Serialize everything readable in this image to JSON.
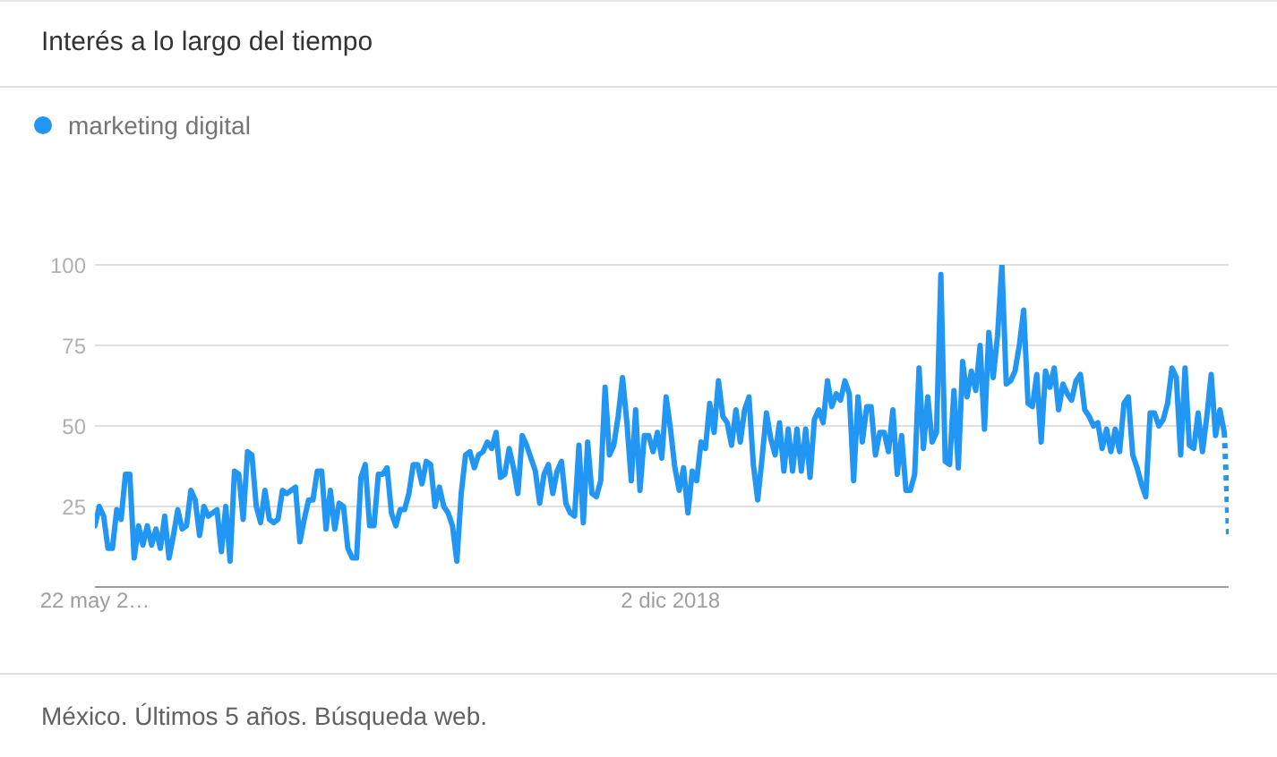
{
  "chart_data": {
    "type": "line",
    "title": "Interés a lo largo del tiempo",
    "annotations": [
      "México. Últimos 5 años. Búsqueda web."
    ],
    "series": [
      {
        "name": "marketing digital",
        "color": "#2196f3",
        "x": [
          "2016-05-22",
          "2016-05-29",
          "2016-06-05",
          "2016-06-12",
          "2016-06-19",
          "2016-06-26",
          "2016-07-03",
          "2016-07-10",
          "2016-07-17",
          "2016-07-24",
          "2016-07-31",
          "2016-08-07",
          "2016-08-14",
          "2016-08-21",
          "2016-08-28",
          "2016-09-04",
          "2016-09-11",
          "2016-09-18",
          "2016-09-25",
          "2016-10-02",
          "2016-10-09",
          "2016-10-16",
          "2016-10-23",
          "2016-10-30",
          "2016-11-06",
          "2016-11-13",
          "2016-11-20",
          "2016-11-27",
          "2016-12-04",
          "2016-12-11",
          "2016-12-18",
          "2016-12-25",
          "2017-01-01",
          "2017-01-08",
          "2017-01-15",
          "2017-01-22",
          "2017-01-29",
          "2017-02-05",
          "2017-02-12",
          "2017-02-19",
          "2017-02-26",
          "2017-03-05",
          "2017-03-12",
          "2017-03-19",
          "2017-03-26",
          "2017-04-02",
          "2017-04-09",
          "2017-04-16",
          "2017-04-23",
          "2017-04-30",
          "2017-05-07",
          "2017-05-14",
          "2017-05-21",
          "2017-05-28",
          "2017-06-04",
          "2017-06-11",
          "2017-06-18",
          "2017-06-25",
          "2017-07-02",
          "2017-07-09",
          "2017-07-16",
          "2017-07-23",
          "2017-07-30",
          "2017-08-06",
          "2017-08-13",
          "2017-08-20",
          "2017-08-27",
          "2017-09-03",
          "2017-09-10",
          "2017-09-17",
          "2017-09-24",
          "2017-10-01",
          "2017-10-08",
          "2017-10-15",
          "2017-10-22",
          "2017-10-29",
          "2017-11-05",
          "2017-11-12",
          "2017-11-19",
          "2017-11-26",
          "2017-12-03",
          "2017-12-10",
          "2017-12-17",
          "2017-12-24",
          "2017-12-31",
          "2018-01-07",
          "2018-01-14",
          "2018-01-21",
          "2018-01-28",
          "2018-02-04",
          "2018-02-11",
          "2018-02-18",
          "2018-02-25",
          "2018-03-04",
          "2018-03-11",
          "2018-03-18",
          "2018-03-25",
          "2018-04-01",
          "2018-04-08",
          "2018-04-15",
          "2018-04-22",
          "2018-04-29",
          "2018-05-06",
          "2018-05-13",
          "2018-05-20",
          "2018-05-27",
          "2018-06-03",
          "2018-06-10",
          "2018-06-17",
          "2018-06-24",
          "2018-07-01",
          "2018-07-08",
          "2018-07-15",
          "2018-07-22",
          "2018-07-29",
          "2018-08-05",
          "2018-08-12",
          "2018-08-19",
          "2018-08-26",
          "2018-09-02",
          "2018-09-09",
          "2018-09-16",
          "2018-09-23",
          "2018-09-30",
          "2018-10-07",
          "2018-10-14",
          "2018-10-21",
          "2018-10-28",
          "2018-11-04",
          "2018-11-11",
          "2018-11-18",
          "2018-11-25",
          "2018-12-02",
          "2018-12-09",
          "2018-12-16",
          "2018-12-23",
          "2018-12-30",
          "2019-01-06",
          "2019-01-13",
          "2019-01-20",
          "2019-01-27",
          "2019-02-03",
          "2019-02-10",
          "2019-02-17",
          "2019-02-24",
          "2019-03-03",
          "2019-03-10",
          "2019-03-17",
          "2019-03-24",
          "2019-03-31",
          "2019-04-07",
          "2019-04-14",
          "2019-04-21",
          "2019-04-28",
          "2019-05-05",
          "2019-05-12",
          "2019-05-19",
          "2019-05-26",
          "2019-06-02",
          "2019-06-09",
          "2019-06-16",
          "2019-06-23",
          "2019-06-30",
          "2019-07-07",
          "2019-07-14",
          "2019-07-21",
          "2019-07-28",
          "2019-08-04",
          "2019-08-11",
          "2019-08-18",
          "2019-08-25",
          "2019-09-01",
          "2019-09-08",
          "2019-09-15",
          "2019-09-22",
          "2019-09-29",
          "2019-10-06",
          "2019-10-13",
          "2019-10-20",
          "2019-10-27",
          "2019-11-03",
          "2019-11-10",
          "2019-11-17",
          "2019-11-24",
          "2019-12-01",
          "2019-12-08",
          "2019-12-15",
          "2019-12-22",
          "2019-12-29",
          "2020-01-05",
          "2020-01-12",
          "2020-01-19",
          "2020-01-26",
          "2020-02-02",
          "2020-02-09",
          "2020-02-16",
          "2020-02-23",
          "2020-03-01",
          "2020-03-08",
          "2020-03-15",
          "2020-03-22",
          "2020-03-29",
          "2020-04-05",
          "2020-04-12",
          "2020-04-19",
          "2020-04-26",
          "2020-05-03",
          "2020-05-10",
          "2020-05-17",
          "2020-05-24",
          "2020-05-31",
          "2020-06-07",
          "2020-06-14",
          "2020-06-21",
          "2020-06-28",
          "2020-07-05",
          "2020-07-12",
          "2020-07-19",
          "2020-07-26",
          "2020-08-02",
          "2020-08-09",
          "2020-08-16",
          "2020-08-23",
          "2020-08-30",
          "2020-09-06",
          "2020-09-13",
          "2020-09-20",
          "2020-09-27",
          "2020-10-04",
          "2020-10-11",
          "2020-10-18",
          "2020-10-25",
          "2020-11-01",
          "2020-11-08",
          "2020-11-15",
          "2020-11-22",
          "2020-11-29",
          "2020-12-06",
          "2020-12-13",
          "2020-12-20",
          "2020-12-27",
          "2021-01-03",
          "2021-01-10",
          "2021-01-17",
          "2021-01-24",
          "2021-01-31",
          "2021-02-07",
          "2021-02-14",
          "2021-02-21",
          "2021-02-28",
          "2021-03-07",
          "2021-03-14",
          "2021-03-21",
          "2021-03-28",
          "2021-04-04",
          "2021-04-11",
          "2021-04-18",
          "2021-04-25",
          "2021-05-02",
          "2021-05-09"
        ],
        "values": [
          19,
          25,
          22,
          12,
          12,
          24,
          21,
          35,
          35,
          9,
          19,
          13,
          19,
          13,
          18,
          12,
          22,
          9,
          16,
          24,
          18,
          19,
          30,
          27,
          16,
          25,
          22,
          23,
          24,
          11,
          25,
          8,
          36,
          35,
          21,
          42,
          41,
          25,
          20,
          30,
          21,
          20,
          21,
          30,
          29,
          30,
          31,
          14,
          21,
          27,
          27,
          36,
          36,
          18,
          30,
          18,
          26,
          25,
          12,
          9,
          9,
          34,
          38,
          19,
          19,
          35,
          35,
          37,
          23,
          19,
          24,
          24,
          29,
          38,
          38,
          32,
          39,
          38,
          25,
          31,
          25,
          23,
          19,
          8,
          29,
          41,
          42,
          37,
          41,
          42,
          45,
          43,
          48,
          34,
          35,
          43,
          37,
          29,
          47,
          44,
          40,
          36,
          26,
          35,
          38,
          29,
          36,
          39,
          26,
          23,
          22,
          44,
          20,
          45,
          29,
          28,
          33,
          62,
          41,
          44,
          53,
          65,
          51,
          33,
          55,
          30,
          47,
          47,
          42,
          48,
          40,
          59,
          49,
          37,
          30,
          37,
          23,
          36,
          33,
          45,
          43,
          57,
          48,
          64,
          53,
          51,
          44,
          55,
          45,
          55,
          59,
          38,
          27,
          40,
          54,
          46,
          41,
          51,
          36,
          49,
          36,
          49,
          36,
          49,
          34,
          52,
          55,
          51,
          64,
          56,
          60,
          58,
          64,
          60,
          33,
          59,
          45,
          56,
          56,
          41,
          48,
          48,
          42,
          55,
          35,
          47,
          30,
          30,
          35,
          68,
          43,
          59,
          45,
          48,
          97,
          39,
          38,
          61,
          37,
          70,
          59,
          67,
          61,
          75,
          49,
          79,
          65,
          78,
          100,
          63,
          64,
          67,
          75,
          86,
          57,
          56,
          66,
          45,
          67,
          62,
          68,
          55,
          63,
          60,
          58,
          64,
          66,
          55,
          53,
          50,
          51,
          43,
          49,
          42,
          49,
          42,
          57,
          59,
          41,
          37,
          32,
          28,
          54,
          54,
          50,
          52,
          57,
          68,
          65,
          41,
          68,
          44,
          43,
          54,
          42,
          53,
          66,
          47,
          55,
          48
        ]
      },
      {
        "color": "#2196f3",
        "line_style": "dotted",
        "x": [
          "2021-05-09",
          "2021-05-16"
        ],
        "values": [
          48,
          16
        ]
      }
    ],
    "xlim": [
      "2016-05-22",
      "2021-05-16"
    ],
    "xticks": [
      {
        "value": "2016-05-22",
        "label": "22 may 2…"
      },
      {
        "value": "2018-12-02",
        "label": "2 dic 2018"
      }
    ],
    "ylim": [
      0,
      100
    ],
    "yticks": [
      25,
      50,
      75,
      100
    ],
    "grid": "y",
    "legend": "top left",
    "marker": "none",
    "line_style": "solid"
  }
}
